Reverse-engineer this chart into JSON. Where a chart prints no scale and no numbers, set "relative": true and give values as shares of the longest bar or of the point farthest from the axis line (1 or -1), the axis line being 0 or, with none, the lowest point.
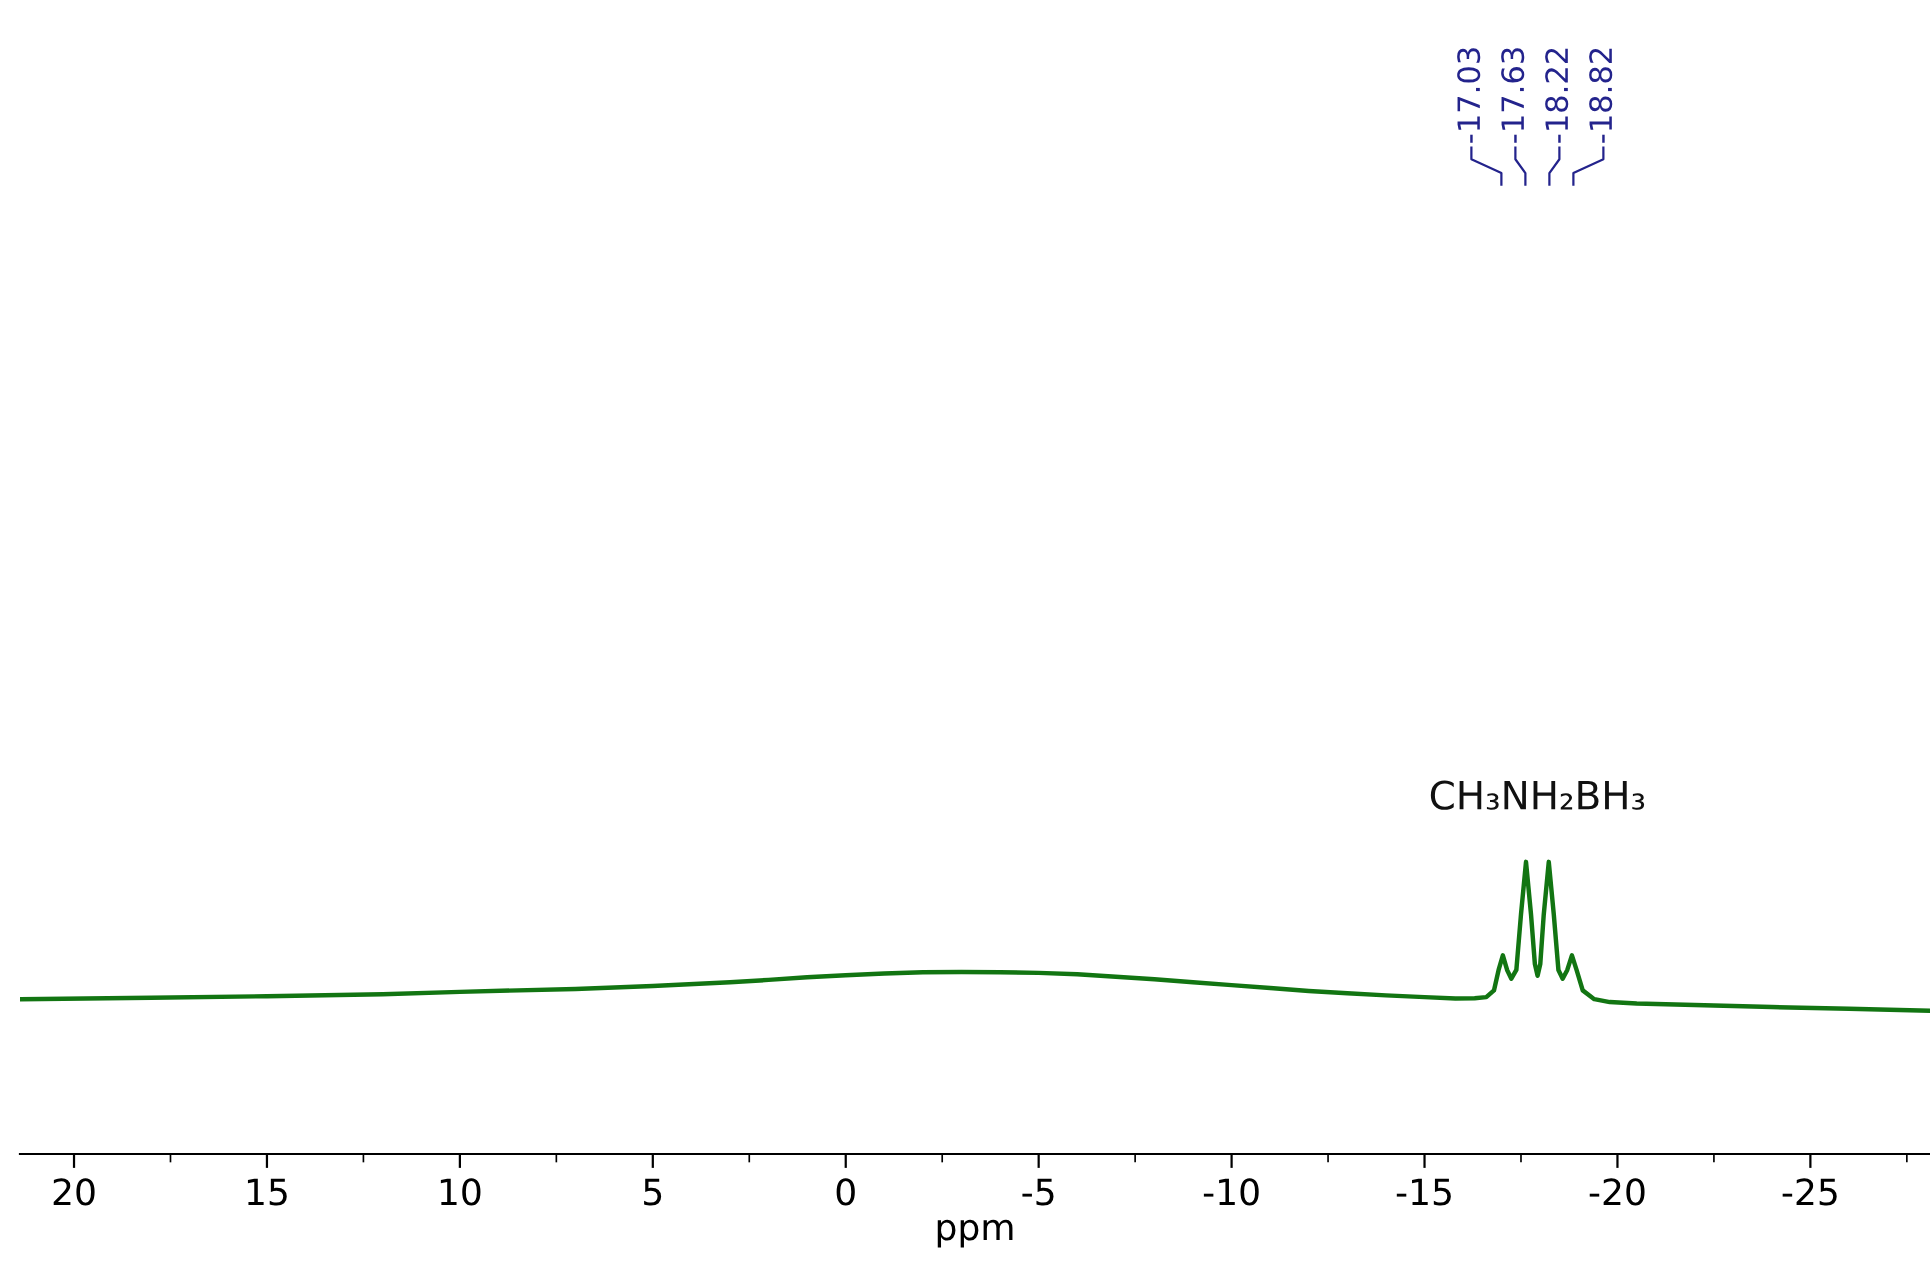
{
  "chart_data": {
    "type": "line",
    "relative": true,
    "xlabel": "ppm",
    "xlim": [
      21.4,
      -28.1
    ],
    "xticks": [
      20,
      {
        "value": 17.5,
        "label": null
      },
      15,
      {
        "value": 12.5,
        "label": null
      },
      10,
      {
        "value": 7.5,
        "label": null
      },
      5,
      {
        "value": 2.5,
        "label": null
      },
      0,
      {
        "value": -2.5,
        "label": null
      },
      -5,
      {
        "value": -7.5,
        "label": null
      },
      -10,
      {
        "value": -12.5,
        "label": null
      },
      -15,
      {
        "value": -17.5,
        "label": null
      },
      -20,
      {
        "value": -22.5,
        "label": null
      },
      -25,
      {
        "value": -27.5,
        "label": null
      }
    ],
    "grid": false,
    "legend": false,
    "marker": "none",
    "line_style": "solid",
    "series": [
      {
        "color": "#127512",
        "x": [
          21.4,
          18,
          15,
          12,
          10,
          7,
          5,
          3,
          2,
          1,
          0,
          -1,
          -2,
          -3,
          -4,
          -5,
          -6,
          -7,
          -8,
          -9,
          -10,
          -11,
          -12,
          -13,
          -14,
          -15,
          -15.8,
          -16.3,
          -16.6,
          -16.8,
          -16.92,
          -17.03,
          -17.14,
          -17.25,
          -17.38,
          -17.5,
          -17.63,
          -17.76,
          -17.86,
          -17.93,
          -18.0,
          -18.09,
          -18.22,
          -18.35,
          -18.47,
          -18.58,
          -18.7,
          -18.82,
          -18.94,
          -19.1,
          -19.4,
          -19.8,
          -20.5,
          -22,
          -24,
          -26,
          -28.1
        ],
        "values": [
          0.53,
          0.535,
          0.54,
          0.547,
          0.555,
          0.565,
          0.575,
          0.588,
          0.596,
          0.605,
          0.612,
          0.618,
          0.622,
          0.623,
          0.622,
          0.62,
          0.615,
          0.607,
          0.598,
          0.588,
          0.578,
          0.568,
          0.558,
          0.55,
          0.543,
          0.537,
          0.532,
          0.533,
          0.537,
          0.56,
          0.63,
          0.68,
          0.63,
          0.6,
          0.63,
          0.82,
          1.0,
          0.82,
          0.65,
          0.61,
          0.65,
          0.82,
          1.0,
          0.82,
          0.63,
          0.6,
          0.63,
          0.68,
          0.63,
          0.56,
          0.53,
          0.52,
          0.515,
          0.51,
          0.503,
          0.497,
          0.49
        ]
      }
    ],
    "annotations": [
      "-17.03",
      "-17.63",
      "-18.22",
      "-18.82",
      "CH₃NH₂BH₃"
    ]
  }
}
